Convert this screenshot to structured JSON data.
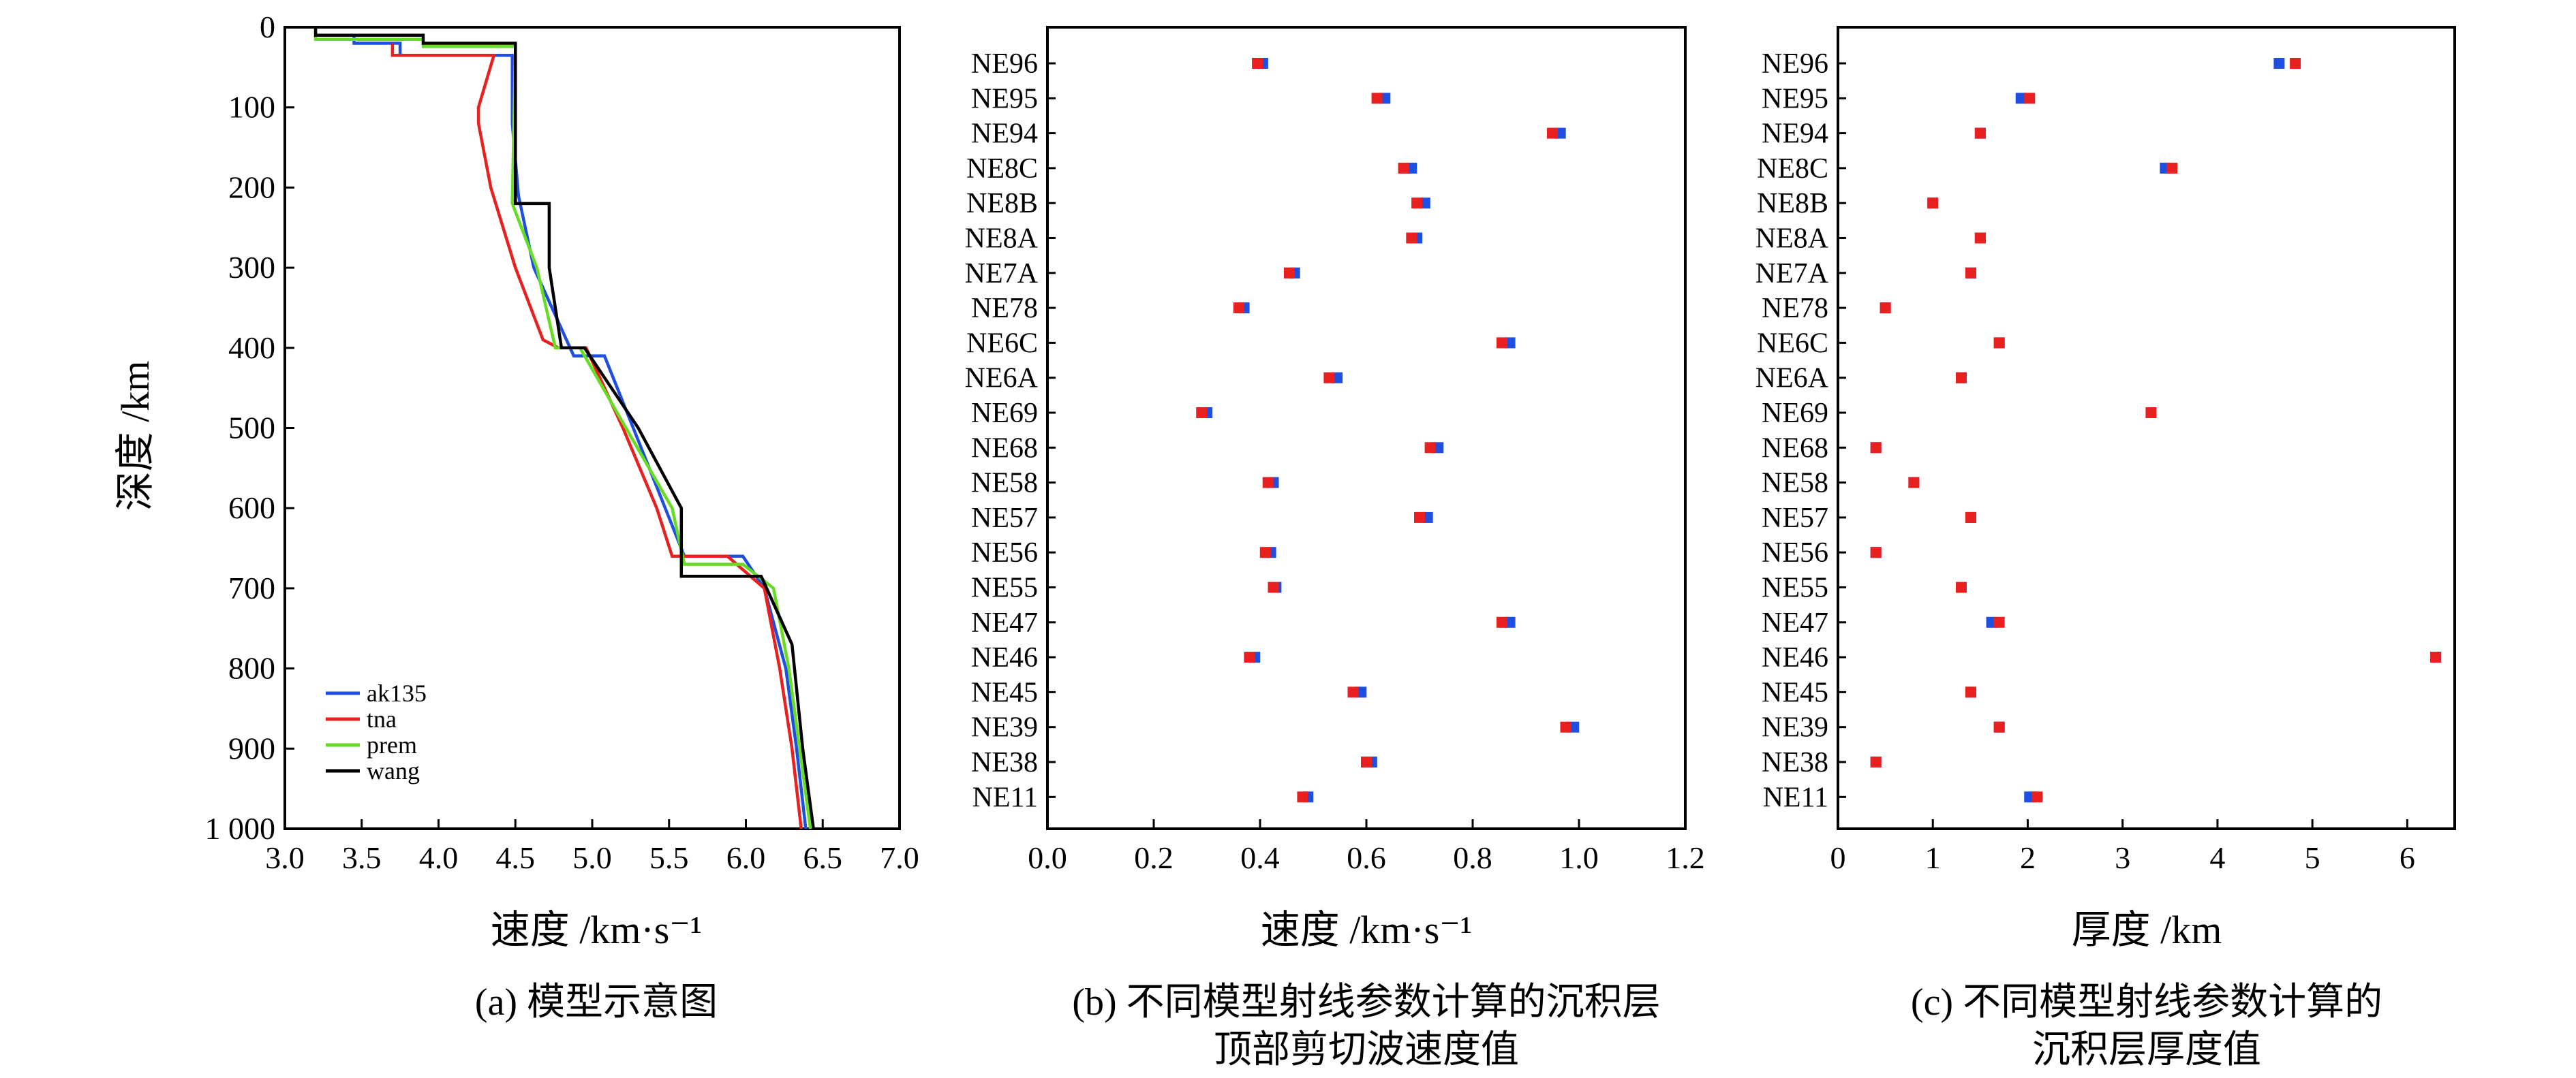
{
  "chart_data": [
    {
      "type": "line",
      "caption": "(a) 模型示意图",
      "xlabel": "速度 /km·s⁻¹",
      "ylabel": "深度 /km",
      "xlim": [
        3.0,
        7.0
      ],
      "ylim": [
        1000,
        0
      ],
      "xticks": [
        "3.0",
        "3.5",
        "4.0",
        "4.5",
        "5.0",
        "5.5",
        "6.0",
        "6.5",
        "7.0"
      ],
      "yticks": [
        "0",
        "100",
        "200",
        "300",
        "400",
        "500",
        "600",
        "700",
        "800",
        "900",
        "1 000"
      ],
      "legend_position": "bottom-left",
      "grid": false,
      "series": [
        {
          "name": "ak135",
          "color": "#1f4fe0",
          "points": [
            [
              3.45,
              10
            ],
            [
              3.45,
              20
            ],
            [
              3.75,
              20
            ],
            [
              3.75,
              35
            ],
            [
              4.48,
              35
            ],
            [
              4.48,
              120
            ],
            [
              4.52,
              210
            ],
            [
              4.62,
              300
            ],
            [
              4.88,
              410
            ],
            [
              5.08,
              410
            ],
            [
              5.6,
              660
            ],
            [
              5.98,
              660
            ],
            [
              6.12,
              700
            ],
            [
              6.26,
              800
            ],
            [
              6.33,
              900
            ],
            [
              6.39,
              1000
            ]
          ]
        },
        {
          "name": "tna",
          "color": "#e82020",
          "points": [
            [
              3.7,
              20
            ],
            [
              3.7,
              35
            ],
            [
              4.36,
              35
            ],
            [
              4.26,
              100
            ],
            [
              4.26,
              120
            ],
            [
              4.34,
              200
            ],
            [
              4.5,
              300
            ],
            [
              4.68,
              390
            ],
            [
              4.78,
              400
            ],
            [
              4.96,
              400
            ],
            [
              5.2,
              500
            ],
            [
              5.42,
              600
            ],
            [
              5.52,
              660
            ],
            [
              5.88,
              660
            ],
            [
              6.12,
              700
            ],
            [
              6.22,
              800
            ],
            [
              6.3,
              900
            ],
            [
              6.36,
              1000
            ]
          ]
        },
        {
          "name": "prem",
          "color": "#66dd22",
          "points": [
            [
              3.2,
              0
            ],
            [
              3.2,
              15
            ],
            [
              3.9,
              15
            ],
            [
              3.9,
              24
            ],
            [
              4.5,
              24
            ],
            [
              4.48,
              220
            ],
            [
              4.64,
              300
            ],
            [
              4.76,
              400
            ],
            [
              4.92,
              400
            ],
            [
              5.22,
              500
            ],
            [
              5.52,
              600
            ],
            [
              5.6,
              670
            ],
            [
              5.98,
              670
            ],
            [
              6.18,
              700
            ],
            [
              6.28,
              800
            ],
            [
              6.35,
              900
            ],
            [
              6.42,
              1000
            ]
          ]
        },
        {
          "name": "wang",
          "color": "#000000",
          "points": [
            [
              3.2,
              0
            ],
            [
              3.2,
              10
            ],
            [
              3.9,
              10
            ],
            [
              3.9,
              20
            ],
            [
              4.5,
              20
            ],
            [
              4.5,
              220
            ],
            [
              4.72,
              220
            ],
            [
              4.72,
              300
            ],
            [
              4.8,
              400
            ],
            [
              4.95,
              400
            ],
            [
              5.3,
              500
            ],
            [
              5.58,
              600
            ],
            [
              5.58,
              685
            ],
            [
              6.1,
              685
            ],
            [
              6.3,
              770
            ],
            [
              6.37,
              900
            ],
            [
              6.44,
              1000
            ]
          ]
        }
      ]
    },
    {
      "type": "scatter",
      "caption_line1": "(b) 不同模型射线参数计算的沉积层",
      "caption_line2": "顶部剪切波速度值",
      "xlabel": "速度 /km·s⁻¹",
      "xlim": [
        0.0,
        1.2
      ],
      "xticks": [
        "0.0",
        "0.2",
        "0.4",
        "0.6",
        "0.8",
        "1.0",
        "1.2"
      ],
      "categories": [
        "NE96",
        "NE95",
        "NE94",
        "NE8C",
        "NE8B",
        "NE8A",
        "NE7A",
        "NE78",
        "NE6C",
        "NE6A",
        "NE69",
        "NE68",
        "NE58",
        "NE57",
        "NE56",
        "NE55",
        "NE47",
        "NE46",
        "NE45",
        "NE39",
        "NE38",
        "NE11"
      ],
      "series": [
        {
          "color": "#1f4fe0",
          "values": [
            0.405,
            0.635,
            0.965,
            0.685,
            0.71,
            0.695,
            0.465,
            0.37,
            0.87,
            0.545,
            0.3,
            0.735,
            0.425,
            0.715,
            0.42,
            0.43,
            0.87,
            0.39,
            0.59,
            0.99,
            0.61,
            0.49
          ]
        },
        {
          "color": "#e82020",
          "values": [
            0.395,
            0.62,
            0.95,
            0.67,
            0.695,
            0.685,
            0.455,
            0.36,
            0.855,
            0.53,
            0.29,
            0.72,
            0.415,
            0.7,
            0.41,
            0.425,
            0.855,
            0.38,
            0.575,
            0.975,
            0.6,
            0.48
          ]
        }
      ]
    },
    {
      "type": "scatter",
      "caption_line1": "(c) 不同模型射线参数计算的",
      "caption_line2": "沉积层厚度值",
      "xlabel": "厚度 /km",
      "xlim": [
        0,
        6.5
      ],
      "xticks": [
        "0",
        "1",
        "2",
        "3",
        "4",
        "5",
        "6"
      ],
      "categories": [
        "NE96",
        "NE95",
        "NE94",
        "NE8C",
        "NE8B",
        "NE8A",
        "NE7A",
        "NE78",
        "NE6C",
        "NE6A",
        "NE69",
        "NE68",
        "NE58",
        "NE57",
        "NE56",
        "NE55",
        "NE47",
        "NE46",
        "NE45",
        "NE39",
        "NE38",
        "NE11"
      ],
      "series": [
        {
          "color": "#1f4fe0",
          "values": [
            4.65,
            1.93,
            1.5,
            3.45,
            1.0,
            1.5,
            1.4,
            0.5,
            1.7,
            1.3,
            3.3,
            0.4,
            0.8,
            1.4,
            0.4,
            1.3,
            1.62,
            6.3,
            1.4,
            1.7,
            0.4,
            2.02
          ]
        },
        {
          "color": "#e82020",
          "values": [
            4.82,
            2.02,
            1.5,
            3.52,
            1.0,
            1.5,
            1.4,
            0.5,
            1.7,
            1.3,
            3.3,
            0.4,
            0.8,
            1.4,
            0.4,
            1.3,
            1.7,
            6.3,
            1.4,
            1.7,
            0.4,
            2.1
          ]
        }
      ]
    }
  ]
}
